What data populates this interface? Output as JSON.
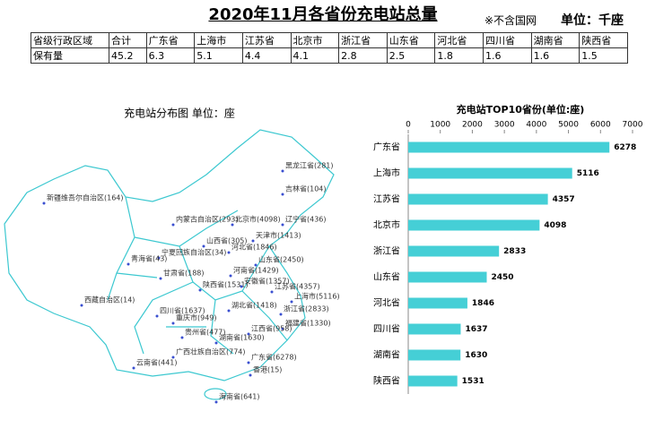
{
  "header": {
    "title": "2020年11月各省份充电站总量",
    "note": "※不含国网",
    "unit": "单位：千座"
  },
  "table": {
    "rows": [
      [
        "省级行政区域",
        "合计",
        "广东省",
        "上海市",
        "江苏省",
        "北京市",
        "浙江省",
        "山东省",
        "河北省",
        "四川省",
        "湖南省",
        "陕西省"
      ],
      [
        "保有量",
        "45.2",
        "6.3",
        "5.1",
        "4.4",
        "4.1",
        "2.8",
        "2.5",
        "1.8",
        "1.6",
        "1.6",
        "1.5"
      ]
    ]
  },
  "map": {
    "title": "充电站分布图   单位：座",
    "labels": [
      "黑龙江省(281)",
      "吉林省(104)",
      "新疆维吾尔自治区(164)",
      "内蒙古自治区(293)",
      "辽宁省(436)",
      "北京市(4098)",
      "天津市(1413)",
      "山西省(305)",
      "河北省(1846)",
      "宁夏回族自治区(34)",
      "青海省(43)",
      "山东省(2450)",
      "甘肃省(188)",
      "河南省(1429)",
      "陕西省(1531)",
      "江苏省(4357)",
      "安徽省(1357)",
      "上海市(5116)",
      "西藏自治区(14)",
      "湖北省(1418)",
      "浙江省(2833)",
      "四川省(1637)",
      "重庆市(949)",
      "福建省(1330)",
      "江西省(958)",
      "贵州省(477)",
      "湖南省(1630)",
      "广西壮族自治区(774)",
      "广东省(6278)",
      "云南省(441)",
      "香港(15)",
      "海南省(641)"
    ]
  },
  "chart_data": {
    "type": "hbar",
    "title": "充电站TOP10省份(单位:座)",
    "categories": [
      "广东省",
      "上海市",
      "江苏省",
      "北京市",
      "浙江省",
      "山东省",
      "河北省",
      "四川省",
      "湖南省",
      "陕西省"
    ],
    "values": [
      6278,
      5116,
      4357,
      4098,
      2833,
      2450,
      1846,
      1637,
      1630,
      1531
    ],
    "color": "#45cfd6",
    "xlim": [
      0,
      7000
    ],
    "xticks": [
      0,
      1000,
      2000,
      3000,
      4000,
      5000,
      6000,
      7000
    ]
  }
}
